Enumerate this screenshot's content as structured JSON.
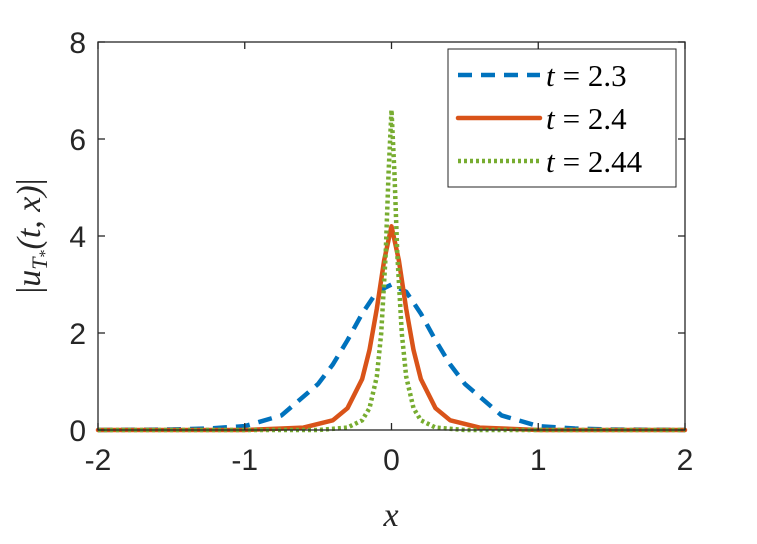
{
  "chart_data": {
    "type": "line",
    "xlabel": "x",
    "ylabel": "|u_{T*}(t,x)|",
    "ylabel_parts": {
      "bar_left": "|",
      "u": "u",
      "sub_T": "T",
      "sub_star": "*",
      "args": "(t, x)",
      "bar_right": "|"
    },
    "xlim": [
      -2,
      2
    ],
    "ylim": [
      0,
      8
    ],
    "xticks": [
      -2,
      -1,
      0,
      1,
      2
    ],
    "xtick_labels": [
      "-2",
      "-1",
      "0",
      "1",
      "2"
    ],
    "yticks": [
      0,
      2,
      4,
      6,
      8
    ],
    "ytick_labels": [
      "0",
      "2",
      "4",
      "6",
      "8"
    ],
    "grid": false,
    "legend_position": "top-right",
    "series": [
      {
        "name": "t = 2.3",
        "label_var": "t",
        "label_value": "= 2.3",
        "color": "#0072BD",
        "style": "dashed",
        "x": [
          -2.0,
          -1.5,
          -1.25,
          -1.0,
          -0.75,
          -0.5,
          -0.4,
          -0.3,
          -0.2,
          -0.1,
          0.0,
          0.1,
          0.2,
          0.3,
          0.4,
          0.5,
          0.75,
          1.0,
          1.25,
          1.5,
          2.0
        ],
        "y": [
          0.0,
          0.01,
          0.03,
          0.08,
          0.3,
          0.95,
          1.35,
          1.85,
          2.4,
          2.85,
          3.0,
          2.85,
          2.4,
          1.85,
          1.35,
          0.95,
          0.3,
          0.08,
          0.03,
          0.01,
          0.0
        ]
      },
      {
        "name": "t = 2.4",
        "label_var": "t",
        "label_value": "= 2.4",
        "color": "#D95319",
        "style": "solid",
        "x": [
          -2.0,
          -1.0,
          -0.6,
          -0.4,
          -0.3,
          -0.2,
          -0.15,
          -0.1,
          -0.05,
          0.0,
          0.05,
          0.1,
          0.15,
          0.2,
          0.3,
          0.4,
          0.6,
          1.0,
          2.0
        ],
        "y": [
          0.0,
          0.0,
          0.05,
          0.2,
          0.45,
          1.05,
          1.65,
          2.5,
          3.5,
          4.2,
          3.5,
          2.5,
          1.65,
          1.05,
          0.45,
          0.2,
          0.05,
          0.0,
          0.0
        ]
      },
      {
        "name": "t = 2.44",
        "label_var": "t",
        "label_value": "= 2.44",
        "color": "#77AC30",
        "style": "dotted",
        "x": [
          -2.0,
          -0.5,
          -0.3,
          -0.2,
          -0.15,
          -0.1,
          -0.07,
          -0.04,
          -0.02,
          0.0,
          0.02,
          0.04,
          0.07,
          0.1,
          0.15,
          0.2,
          0.3,
          0.5,
          2.0
        ],
        "y": [
          0.0,
          0.0,
          0.05,
          0.2,
          0.45,
          1.1,
          2.0,
          3.6,
          5.3,
          6.6,
          5.3,
          3.6,
          2.0,
          1.1,
          0.45,
          0.2,
          0.05,
          0.0,
          0.0
        ]
      }
    ]
  }
}
